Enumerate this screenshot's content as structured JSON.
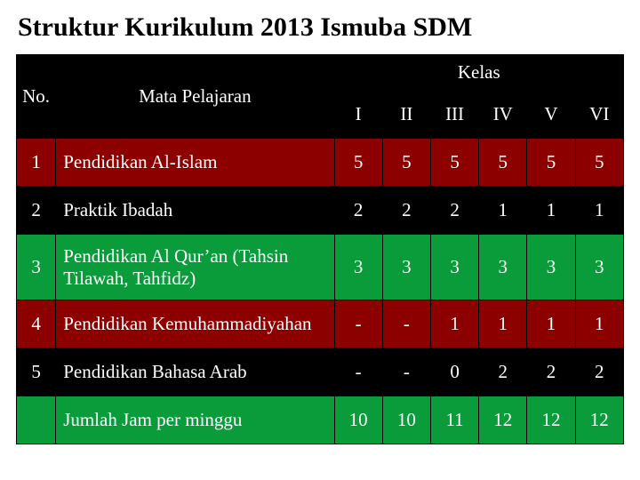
{
  "title": "Struktur Kurikulum 2013 Ismuba SDM",
  "header": {
    "no": "No.",
    "subject": "Mata Pelajaran",
    "group": "Kelas",
    "cols": [
      "I",
      "II",
      "III",
      "IV",
      "V",
      "VI"
    ]
  },
  "rows": [
    {
      "no": "1",
      "subject": "Pendidikan Al-Islam",
      "cells": [
        "5",
        "5",
        "5",
        "5",
        "5",
        "5"
      ],
      "bg": "#8c0000"
    },
    {
      "no": "2",
      "subject": "Praktik Ibadah",
      "cells": [
        "2",
        "2",
        "2",
        "1",
        "1",
        "1"
      ],
      "bg": "#000000"
    },
    {
      "no": "3",
      "subject": "Pendidikan Al Qur’an (Tahsin Tilawah, Tahfidz)",
      "cells": [
        "3",
        "3",
        "3",
        "3",
        "3",
        "3"
      ],
      "bg": "#0a9b3b"
    },
    {
      "no": "4",
      "subject": "Pendidikan Kemuhammadiyahan",
      "cells": [
        "-",
        "-",
        "1",
        "1",
        "1",
        "1"
      ],
      "bg": "#8c0000"
    },
    {
      "no": "5",
      "subject": "Pendidikan Bahasa Arab",
      "cells": [
        "-",
        "-",
        "0",
        "2",
        "2",
        "2"
      ],
      "bg": "#000000"
    }
  ],
  "total": {
    "no": "",
    "subject": "Jumlah Jam per minggu",
    "cells": [
      "10",
      "10",
      "11",
      "12",
      "12",
      "12"
    ],
    "bg": "#0a9b3b"
  },
  "colors": {
    "header_bg": "#000000",
    "text": "#ffffff",
    "border": "#000000",
    "red": "#8c0000",
    "black": "#000000",
    "green": "#0a9b3b"
  },
  "row_heights": {
    "header": 84,
    "subheader": 44,
    "data": 54,
    "row3": 74,
    "total": 54
  }
}
